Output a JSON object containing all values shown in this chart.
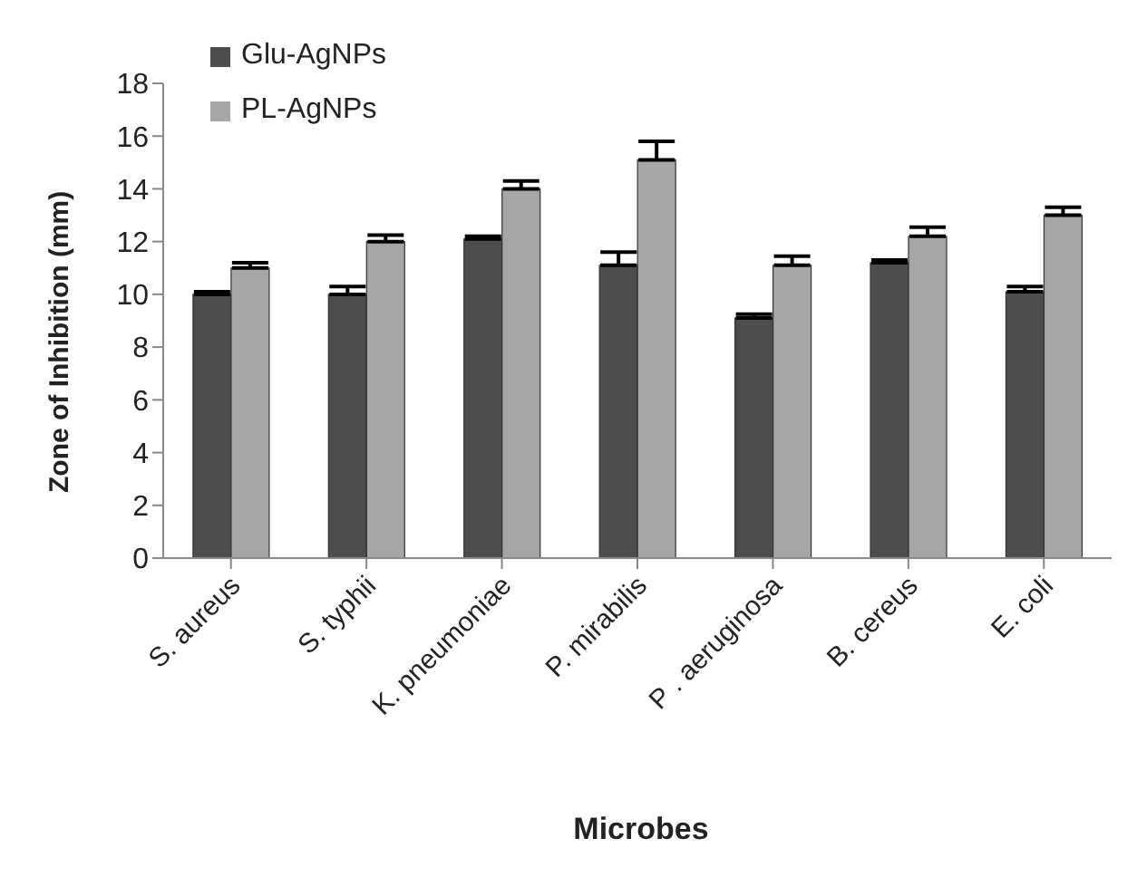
{
  "chart_data": {
    "type": "bar",
    "xlabel": "Microbes",
    "ylabel": "Zone of Inhibition (mm)",
    "categories": [
      "S. aureus",
      "S. typhii",
      "K. pneumoniae",
      "P. mirabilis",
      "P . aeruginosa",
      "B. cereus",
      "E. coli"
    ],
    "series": [
      {
        "name": "Glu-AgNPs",
        "color": "#4d4d4d",
        "values": [
          10,
          10,
          12.1,
          11.1,
          9.1,
          11.2,
          10.1
        ],
        "errors": [
          [
            10,
            10.1
          ],
          [
            10,
            10.3
          ],
          [
            12.1,
            12.2
          ],
          [
            11.1,
            11.6
          ],
          [
            9.1,
            9.25
          ],
          [
            11.2,
            11.3
          ],
          [
            10.1,
            10.3
          ]
        ]
      },
      {
        "name": "PL-AgNPs",
        "color": "#a6a6a6",
        "values": [
          11,
          12,
          14,
          15.1,
          11.1,
          12.2,
          13
        ],
        "errors": [
          [
            11,
            11.2
          ],
          [
            12,
            12.25
          ],
          [
            14,
            14.3
          ],
          [
            15.1,
            15.8
          ],
          [
            11.1,
            11.45
          ],
          [
            12.2,
            12.55
          ],
          [
            13,
            13.3
          ]
        ]
      }
    ],
    "ylim": [
      0,
      18
    ],
    "yticks": [
      0,
      2,
      4,
      6,
      8,
      10,
      12,
      14,
      16,
      18
    ],
    "grid": false,
    "legend": "top left"
  }
}
